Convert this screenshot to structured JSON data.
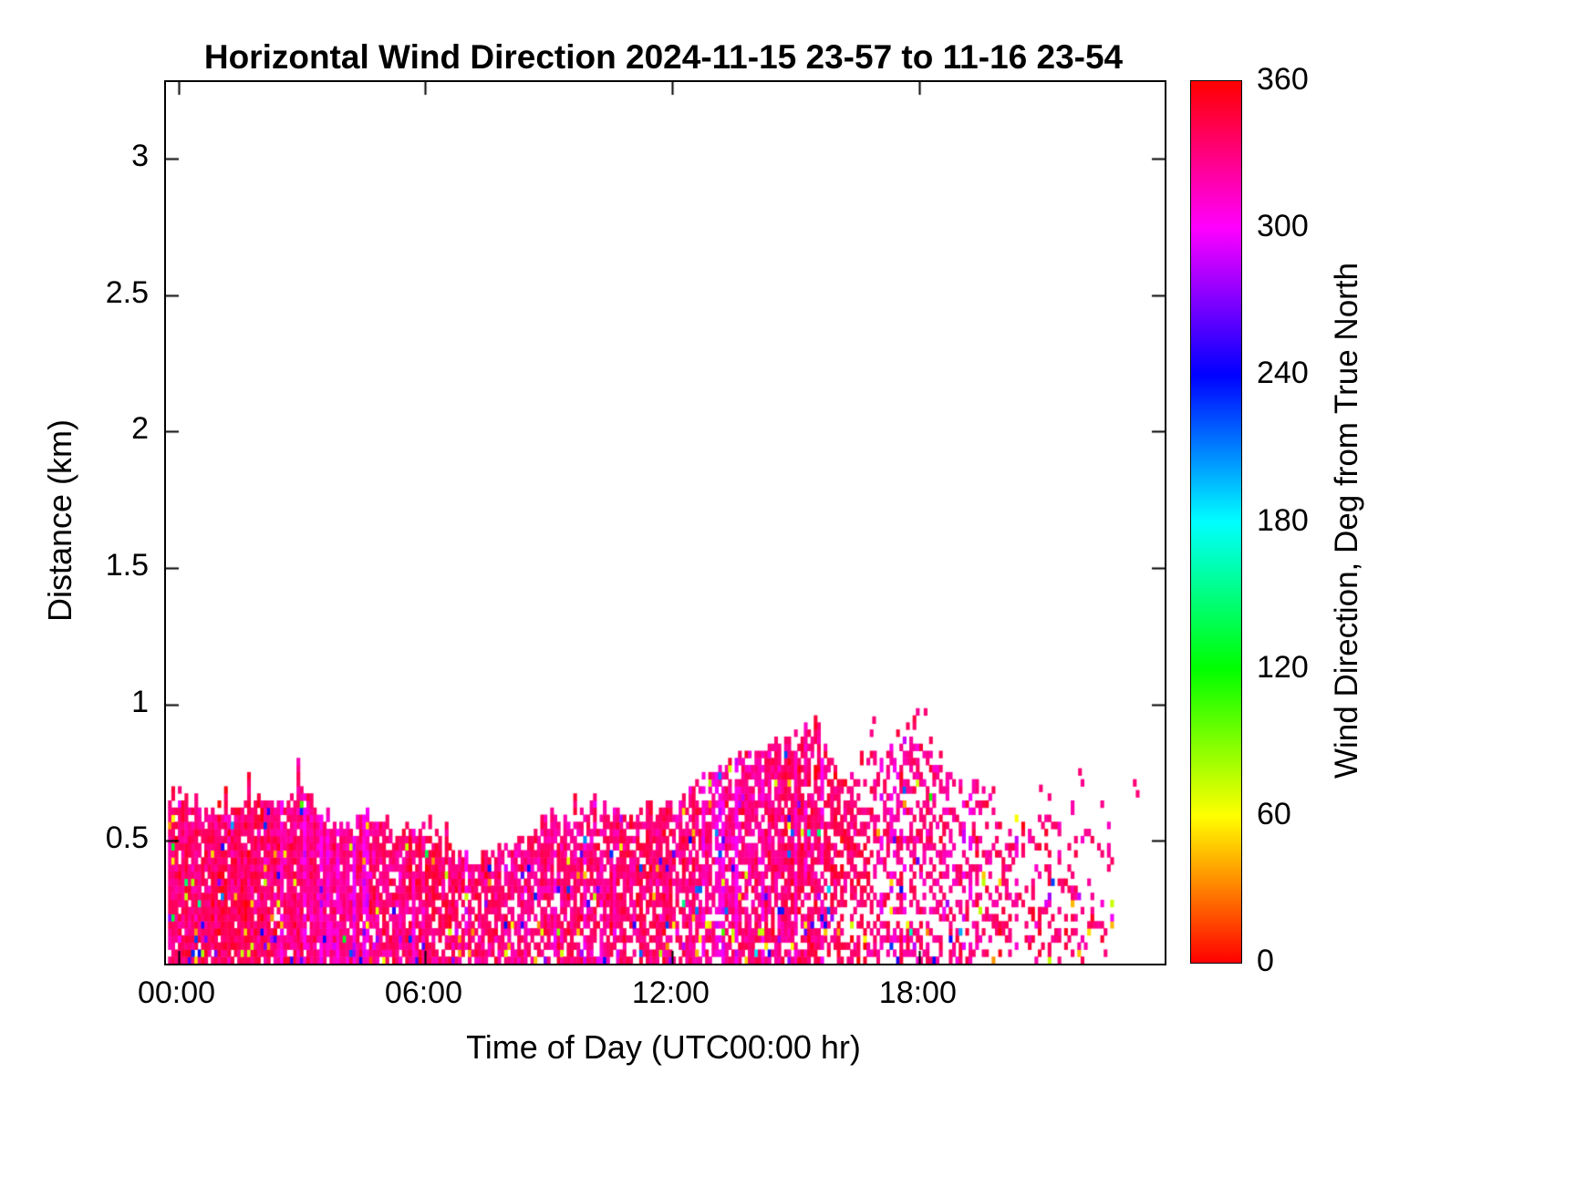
{
  "chart_data": {
    "type": "heatmap",
    "title": "Horizontal Wind Direction 2024-11-15 23-57 to 11-16 23-54",
    "xlabel": "Time of Day (UTC00:00 hr)",
    "ylabel": "Distance (km)",
    "colorbar_label": "Wind Direction, Deg from True North",
    "xlim_hours": [
      -0.3,
      23.95
    ],
    "ylim_km": [
      0.05,
      3.28
    ],
    "grid": false,
    "x_ticks": [
      {
        "hour": 0,
        "label": "00:00"
      },
      {
        "hour": 6,
        "label": "06:00"
      },
      {
        "hour": 12,
        "label": "12:00"
      },
      {
        "hour": 18,
        "label": "18:00"
      }
    ],
    "y_ticks": [
      {
        "value": 0.5,
        "label": "0.5"
      },
      {
        "value": 1,
        "label": "1"
      },
      {
        "value": 1.5,
        "label": "1.5"
      },
      {
        "value": 2,
        "label": "2"
      },
      {
        "value": 2.5,
        "label": "2.5"
      },
      {
        "value": 3,
        "label": "3"
      }
    ],
    "colorbar": {
      "range": [
        0,
        360
      ],
      "ticks": [
        {
          "value": 0,
          "label": "0"
        },
        {
          "value": 60,
          "label": "60"
        },
        {
          "value": 120,
          "label": "120"
        },
        {
          "value": 180,
          "label": "180"
        },
        {
          "value": 240,
          "label": "240"
        },
        {
          "value": 300,
          "label": "300"
        },
        {
          "value": 360,
          "label": "360"
        }
      ],
      "colormap": "hsv",
      "stops": [
        {
          "value": 0,
          "color": "#ff0000"
        },
        {
          "value": 60,
          "color": "#ffff00"
        },
        {
          "value": 120,
          "color": "#00ff00"
        },
        {
          "value": 180,
          "color": "#00ffff"
        },
        {
          "value": 240,
          "color": "#0000ff"
        },
        {
          "value": 300,
          "color": "#ff00ff"
        },
        {
          "value": 360,
          "color": "#ff0000"
        }
      ]
    },
    "heatmap": {
      "description": "Boundary-layer wind direction echoes below ~1 km; dominant direction ~330 deg (NW, deep pink) with magenta/blue/yellow speckle noise near the surface; data 23:57 to ~22:30, sparse/patchy after 16:00",
      "time_start_hour": -0.25,
      "time_end_hour": 22.65,
      "time_step_hours": 0.08,
      "gate_km": 0.026,
      "base_km": 0.05,
      "dominant_direction_deg": 332,
      "direction_jitter_deg": 14,
      "outlier_fraction": 0.035,
      "seed": 20241116,
      "envelope": [
        [
          -0.25,
          0.67,
          1.0
        ],
        [
          0.5,
          0.62,
          1.0
        ],
        [
          1.0,
          0.6,
          1.0
        ],
        [
          1.5,
          0.64,
          1.0
        ],
        [
          2.0,
          0.66,
          1.0
        ],
        [
          2.5,
          0.63,
          1.0
        ],
        [
          2.9,
          0.7,
          1.0
        ],
        [
          3.2,
          0.68,
          1.0
        ],
        [
          3.5,
          0.54,
          1.0
        ],
        [
          4.0,
          0.55,
          0.95
        ],
        [
          4.5,
          0.58,
          0.95
        ],
        [
          5.0,
          0.56,
          0.95
        ],
        [
          5.5,
          0.52,
          0.95
        ],
        [
          6.0,
          0.53,
          0.95
        ],
        [
          6.5,
          0.46,
          0.9
        ],
        [
          7.0,
          0.42,
          0.9
        ],
        [
          7.5,
          0.46,
          0.9
        ],
        [
          8.0,
          0.45,
          0.9
        ],
        [
          8.6,
          0.5,
          0.9
        ],
        [
          9.0,
          0.6,
          0.9
        ],
        [
          9.5,
          0.54,
          0.9
        ],
        [
          10.0,
          0.62,
          0.9
        ],
        [
          10.5,
          0.6,
          0.9
        ],
        [
          11.0,
          0.57,
          0.9
        ],
        [
          11.5,
          0.62,
          0.9
        ],
        [
          12.0,
          0.63,
          0.85
        ],
        [
          12.5,
          0.68,
          0.85
        ],
        [
          13.0,
          0.76,
          0.85
        ],
        [
          13.5,
          0.8,
          0.9
        ],
        [
          14.0,
          0.83,
          0.9
        ],
        [
          14.5,
          0.85,
          0.9
        ],
        [
          15.0,
          0.88,
          0.9
        ],
        [
          15.5,
          0.93,
          0.85
        ],
        [
          15.8,
          0.8,
          0.8
        ],
        [
          16.2,
          0.7,
          0.6
        ],
        [
          16.6,
          0.85,
          0.5
        ],
        [
          17.0,
          0.8,
          0.5
        ],
        [
          17.5,
          0.9,
          0.5
        ],
        [
          17.9,
          0.96,
          0.45
        ],
        [
          18.3,
          0.85,
          0.45
        ],
        [
          18.7,
          0.75,
          0.4
        ],
        [
          19.2,
          0.7,
          0.4
        ],
        [
          19.6,
          0.72,
          0.35
        ],
        [
          20.0,
          0.62,
          0.35
        ],
        [
          20.5,
          0.56,
          0.3
        ],
        [
          21.0,
          0.68,
          0.3
        ],
        [
          21.5,
          0.55,
          0.25
        ],
        [
          21.9,
          0.8,
          0.2
        ],
        [
          22.3,
          0.6,
          0.15
        ],
        [
          22.65,
          0.55,
          0.1
        ]
      ],
      "isolated_points": [
        {
          "hour": 21.85,
          "km": 0.74
        },
        {
          "hour": 23.18,
          "km": 0.7
        },
        {
          "hour": 23.25,
          "km": 0.66
        },
        {
          "hour": 20.9,
          "km": 0.68
        },
        {
          "hour": 18.1,
          "km": 0.96
        },
        {
          "hour": 16.85,
          "km": 0.93
        }
      ]
    }
  }
}
